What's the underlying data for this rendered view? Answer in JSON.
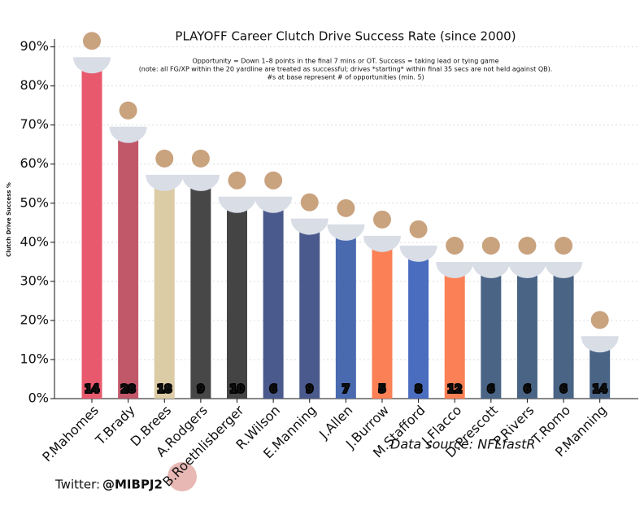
{
  "chart_data": {
    "type": "bar",
    "title": "PLAYOFF Career Clutch Drive Success Rate (since 2000)",
    "subtitle": [
      "Opportunity = Down 1–8 points in the final 7 mins or OT. Success = taking lead or tying game",
      "(note: all FG/XP within the 20 yardline are treated as successful; drives *starting* within final 35 secs are not held against QB).",
      "#s at base represent # of opportunities (min. 5)"
    ],
    "ylabel": "Clutch Drive Success %",
    "categories": [
      "P.Mahomes",
      "T.Brady",
      "D.Brees",
      "A.Rodgers",
      "B.Roethlisberger",
      "R.Wilson",
      "E.Manning",
      "J.Allen",
      "J.Burrow",
      "M.Stafford",
      "J.Flacco",
      "D.Prescott",
      "P.Rivers",
      "T.Romo",
      "P.Manning"
    ],
    "values": [
      85.7,
      67.9,
      55.6,
      55.6,
      50,
      50,
      44.4,
      42.9,
      40,
      37.5,
      33.3,
      33.3,
      33.3,
      33.3,
      14.3
    ],
    "opportunities": [
      14,
      28,
      18,
      9,
      10,
      6,
      9,
      7,
      5,
      8,
      12,
      6,
      6,
      6,
      14
    ],
    "colors": [
      "#e8596e",
      "#c0586a",
      "#dccca5",
      "#474747",
      "#444444",
      "#4b5a8c",
      "#4b5a8c",
      "#4a6ab0",
      "#fb8055",
      "#4a6dc0",
      "#fb8055",
      "#4a6485",
      "#4a6485",
      "#4a6485",
      "#4a6485"
    ],
    "ylim": [
      0,
      92
    ],
    "yticks": [
      {
        "value": 0,
        "label": "0%"
      },
      {
        "value": 10,
        "label": "10%"
      },
      {
        "value": 20,
        "label": "20%"
      },
      {
        "value": 30,
        "label": "30%"
      },
      {
        "value": 40,
        "label": "40%"
      },
      {
        "value": 50,
        "label": "50%"
      },
      {
        "value": 60,
        "label": "60%"
      },
      {
        "value": 70,
        "label": "70%"
      },
      {
        "value": 80,
        "label": "80%"
      },
      {
        "value": 90,
        "label": "90%"
      }
    ],
    "grid": true,
    "source": "Data source: NFLfastR",
    "credit_label": "Twitter:",
    "credit_handle": "@MIBPJ2"
  }
}
